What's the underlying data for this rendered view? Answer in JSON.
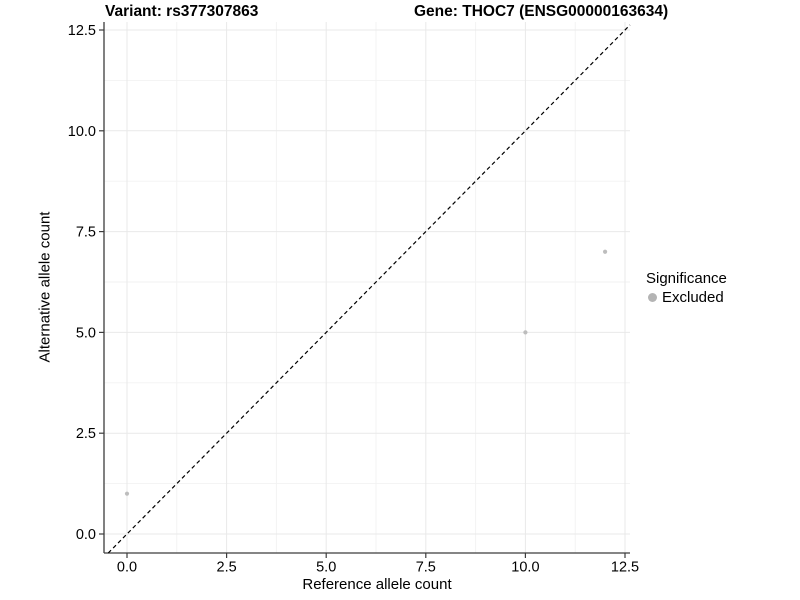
{
  "chart_data": {
    "type": "scatter",
    "title_left": "Variant: rs377307863",
    "title_right": "Gene: THOC7 (ENSG00000163634)",
    "xlabel": "Reference allele count",
    "ylabel": "Alternative allele count",
    "xlim": [
      0,
      12.5
    ],
    "ylim": [
      0,
      12.5
    ],
    "grid": true,
    "x_ticks": {
      "values": [
        0,
        2.5,
        5,
        7.5,
        10,
        12.5
      ],
      "labels": [
        "0.0",
        "2.5",
        "5.0",
        "7.5",
        "10.0",
        "12.5"
      ]
    },
    "y_ticks": {
      "values": [
        0,
        2.5,
        5,
        7.5,
        10,
        12.5
      ],
      "labels": [
        "0.0",
        "2.5",
        "5.0",
        "7.5",
        "10.0",
        "12.5"
      ]
    },
    "minor_ticks": [
      1.25,
      3.75,
      6.25,
      8.75,
      11.25
    ],
    "series": [
      {
        "name": "Excluded",
        "color": "#bdbdbd",
        "points": [
          [
            0,
            1
          ],
          [
            10,
            5
          ],
          [
            12,
            7
          ]
        ]
      }
    ],
    "reference_line": {
      "type": "identity",
      "equation": "y = x",
      "style": "dashed",
      "color": "#000000"
    },
    "legend": {
      "title": "Significance",
      "position": "right",
      "entries": [
        {
          "label": "Excluded",
          "color": "#b4b4b4"
        }
      ]
    },
    "colors": {
      "background": "#ffffff",
      "grid_major": "#e9e9e9",
      "grid_minor": "#f2f2f2",
      "axis_line": "#3c3c3c",
      "text": "#000000"
    }
  }
}
